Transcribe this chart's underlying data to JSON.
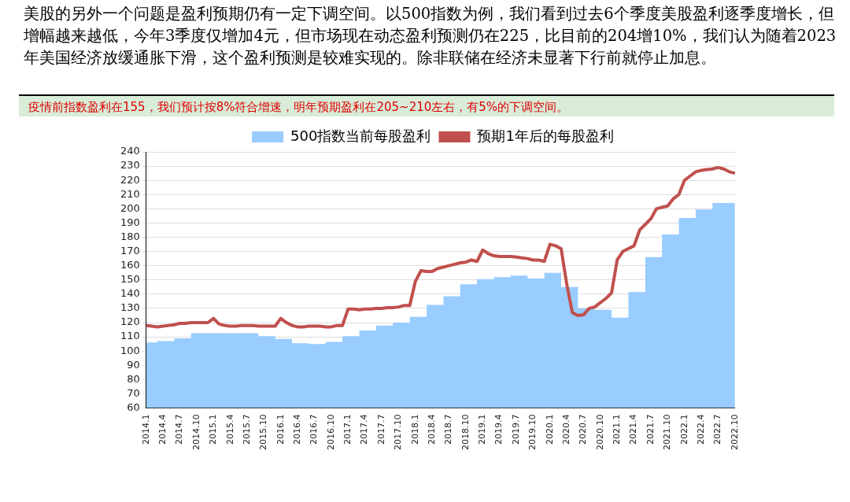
{
  "chart_data": {
    "type": "area",
    "title": "美股的另外一个问题是盈利预期仍有一定下调空间。以500指数为例，我们看到过去6个季度美股盈利逐季度增长，但增幅越来越低，今年3季度仅增加4元，但市场现在动态盈利预测仍在225，比目前的204增10%，我们认为随着2023年美国经济放缓通胀下滑，这个盈利预测是较难实现的。除非联储在经济未显著下行前就停止加息。",
    "subtitle": "疫情前指数盈利在155，我们预计按8%符合增速，明年预期盈利在205~210左右，有5%的下调空间。",
    "categories": [
      "2014.1",
      null,
      null,
      "2014.4",
      null,
      null,
      "2014.7",
      null,
      null,
      "2014.10",
      null,
      null,
      "2015.1",
      null,
      null,
      "2015.4",
      null,
      null,
      "2015.7",
      null,
      null,
      "2015.10",
      null,
      null,
      "2016.1",
      null,
      null,
      "2016.4",
      null,
      null,
      "2016.7",
      null,
      null,
      "2016.10",
      null,
      null,
      "2017.1",
      null,
      null,
      "2017.4",
      null,
      null,
      "2017.7",
      null,
      null,
      "2017.10",
      null,
      null,
      "2018.1",
      null,
      null,
      "2018.4",
      null,
      null,
      "2018.7",
      null,
      null,
      "2018.10",
      null,
      null,
      "2019.1",
      null,
      null,
      "2019.4",
      null,
      null,
      "2019.7",
      null,
      null,
      "2019.10",
      null,
      null,
      "2020.1",
      null,
      null,
      "2020.4",
      null,
      null,
      "2020.7",
      null,
      null,
      "2020.10",
      null,
      null,
      "2021.1",
      null,
      null,
      "2021.4",
      null,
      null,
      "2021.7",
      null,
      null,
      "2021.10",
      null,
      null,
      "2022.1",
      null,
      null,
      "2022.4",
      null,
      null,
      "2022.7",
      null,
      null,
      "2022.10"
    ],
    "series": [
      {
        "name": "500指数当前每股盈利",
        "color": "#99ccff",
        "values": [
          106,
          106,
          106,
          107,
          107,
          107,
          109,
          109,
          109,
          112.5,
          112.5,
          112.5,
          112.5,
          112.5,
          112.5,
          112.5,
          112.5,
          112.5,
          112.5,
          112.5,
          112.5,
          110.5,
          110.5,
          110.5,
          108.5,
          108.5,
          108.5,
          105.5,
          105.5,
          105.5,
          105,
          105,
          105,
          106.5,
          106.5,
          106.5,
          110.5,
          110.5,
          110.5,
          114.5,
          114.5,
          114.5,
          118,
          118,
          118,
          120,
          120,
          120,
          124,
          124,
          124,
          132.5,
          132.5,
          132.5,
          138.5,
          138.5,
          138.5,
          147,
          147,
          147,
          150.5,
          150.5,
          150.5,
          152,
          152,
          152,
          153,
          153,
          153,
          151,
          151,
          151,
          155,
          155,
          155,
          145,
          145,
          145,
          130,
          130,
          130,
          129,
          129,
          129,
          123.5,
          123.5,
          123.5,
          141.5,
          141.5,
          141.5,
          166,
          166,
          166,
          182,
          182,
          182,
          193.5,
          193.5,
          193.5,
          199.5,
          199.5,
          199.5,
          204,
          204,
          204,
          204
        ]
      },
      {
        "name": "预期1年后的每股盈利",
        "type": "line",
        "color": "#c0504d",
        "values": [
          118,
          117.5,
          117,
          117.5,
          118,
          118.5,
          119.5,
          119.5,
          120,
          120,
          120,
          120,
          123,
          119,
          118,
          117.5,
          117.5,
          118,
          118,
          118,
          117.5,
          117.5,
          117.5,
          117.5,
          123,
          120,
          118,
          117,
          117,
          117.5,
          117.5,
          117.5,
          117,
          117,
          118,
          118,
          129.5,
          129.5,
          129,
          129.5,
          129.5,
          130,
          130,
          130.5,
          130.5,
          131,
          132,
          132,
          149,
          156.5,
          156,
          156,
          158,
          159,
          160,
          161,
          162,
          162.5,
          164,
          163,
          171,
          168.5,
          167,
          166.5,
          166.5,
          166.5,
          166,
          165.5,
          165,
          164,
          164,
          163,
          175,
          174,
          172,
          147,
          127,
          125,
          125.5,
          130,
          131,
          134,
          137,
          141,
          164,
          170,
          172,
          174,
          185,
          189,
          193,
          200,
          201,
          202,
          207,
          210,
          220,
          223,
          226,
          227,
          227.5,
          228,
          229,
          228,
          226,
          225
        ]
      }
    ],
    "ylim": [
      60,
      240
    ],
    "yticks": [
      60,
      70,
      80,
      90,
      100,
      110,
      120,
      130,
      140,
      150,
      160,
      170,
      180,
      190,
      200,
      210,
      220,
      230,
      240
    ],
    "grid": "y",
    "legend": "top",
    "marker": "none"
  }
}
